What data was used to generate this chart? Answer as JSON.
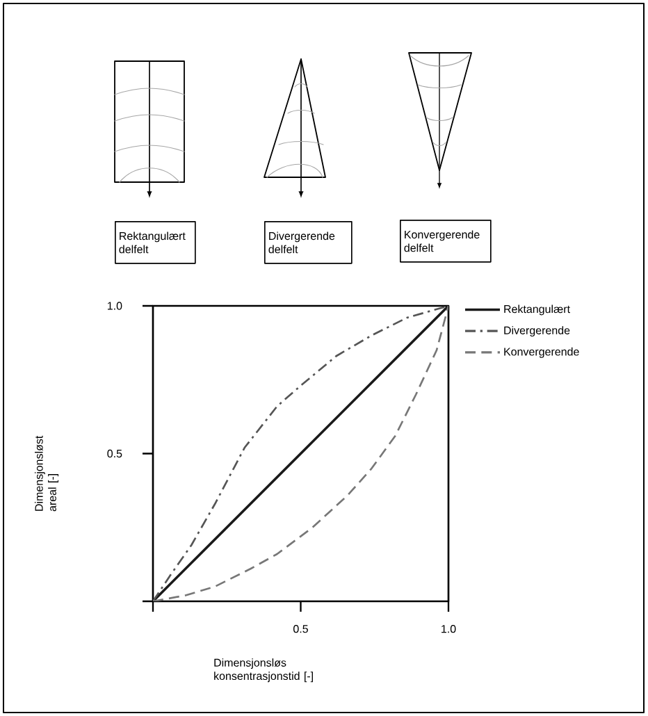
{
  "chart_data": {
    "type": "line",
    "xlabel": "Dimensjonsløs konsentrasjonstid [-]",
    "ylabel": "Dimensjonsløst areal [-]",
    "annotations": [
      "Rektangulært delfelt",
      "Divergerende delfelt",
      "Konvergerende delfelt"
    ],
    "xlim": [
      0,
      1
    ],
    "ylim": [
      0,
      1
    ],
    "xticks": [
      {
        "value": 0,
        "label": null
      },
      {
        "value": 0.5,
        "label": "0.5"
      },
      {
        "value": 1,
        "label": "1.0"
      }
    ],
    "yticks": [
      {
        "value": 0,
        "label": null
      },
      {
        "value": 0.5,
        "label": "0.5"
      },
      {
        "value": 1,
        "label": "1.0"
      }
    ],
    "legend": "top right",
    "series": [
      {
        "name": "Rektangulært",
        "color": "#1a1a1a",
        "line_style": "solid",
        "x": [
          0,
          1
        ],
        "values": [
          0,
          1
        ]
      },
      {
        "name": "Divergerende",
        "color": "#555555",
        "line_style": "dashdot",
        "x": [
          0,
          0.06,
          0.13,
          0.21,
          0.31,
          0.42,
          0.5,
          0.62,
          0.74,
          0.86,
          1
        ],
        "values": [
          0,
          0.09,
          0.19,
          0.33,
          0.52,
          0.66,
          0.73,
          0.83,
          0.9,
          0.96,
          1
        ]
      },
      {
        "name": "Konvergerende",
        "color": "#777777",
        "line_style": "dashed",
        "x": [
          0,
          0.11,
          0.21,
          0.33,
          0.42,
          0.54,
          0.66,
          0.74,
          0.82,
          0.89,
          0.96,
          1
        ],
        "values": [
          0,
          0.02,
          0.05,
          0.11,
          0.16,
          0.25,
          0.36,
          0.45,
          0.56,
          0.7,
          0.85,
          1
        ]
      }
    ]
  }
}
